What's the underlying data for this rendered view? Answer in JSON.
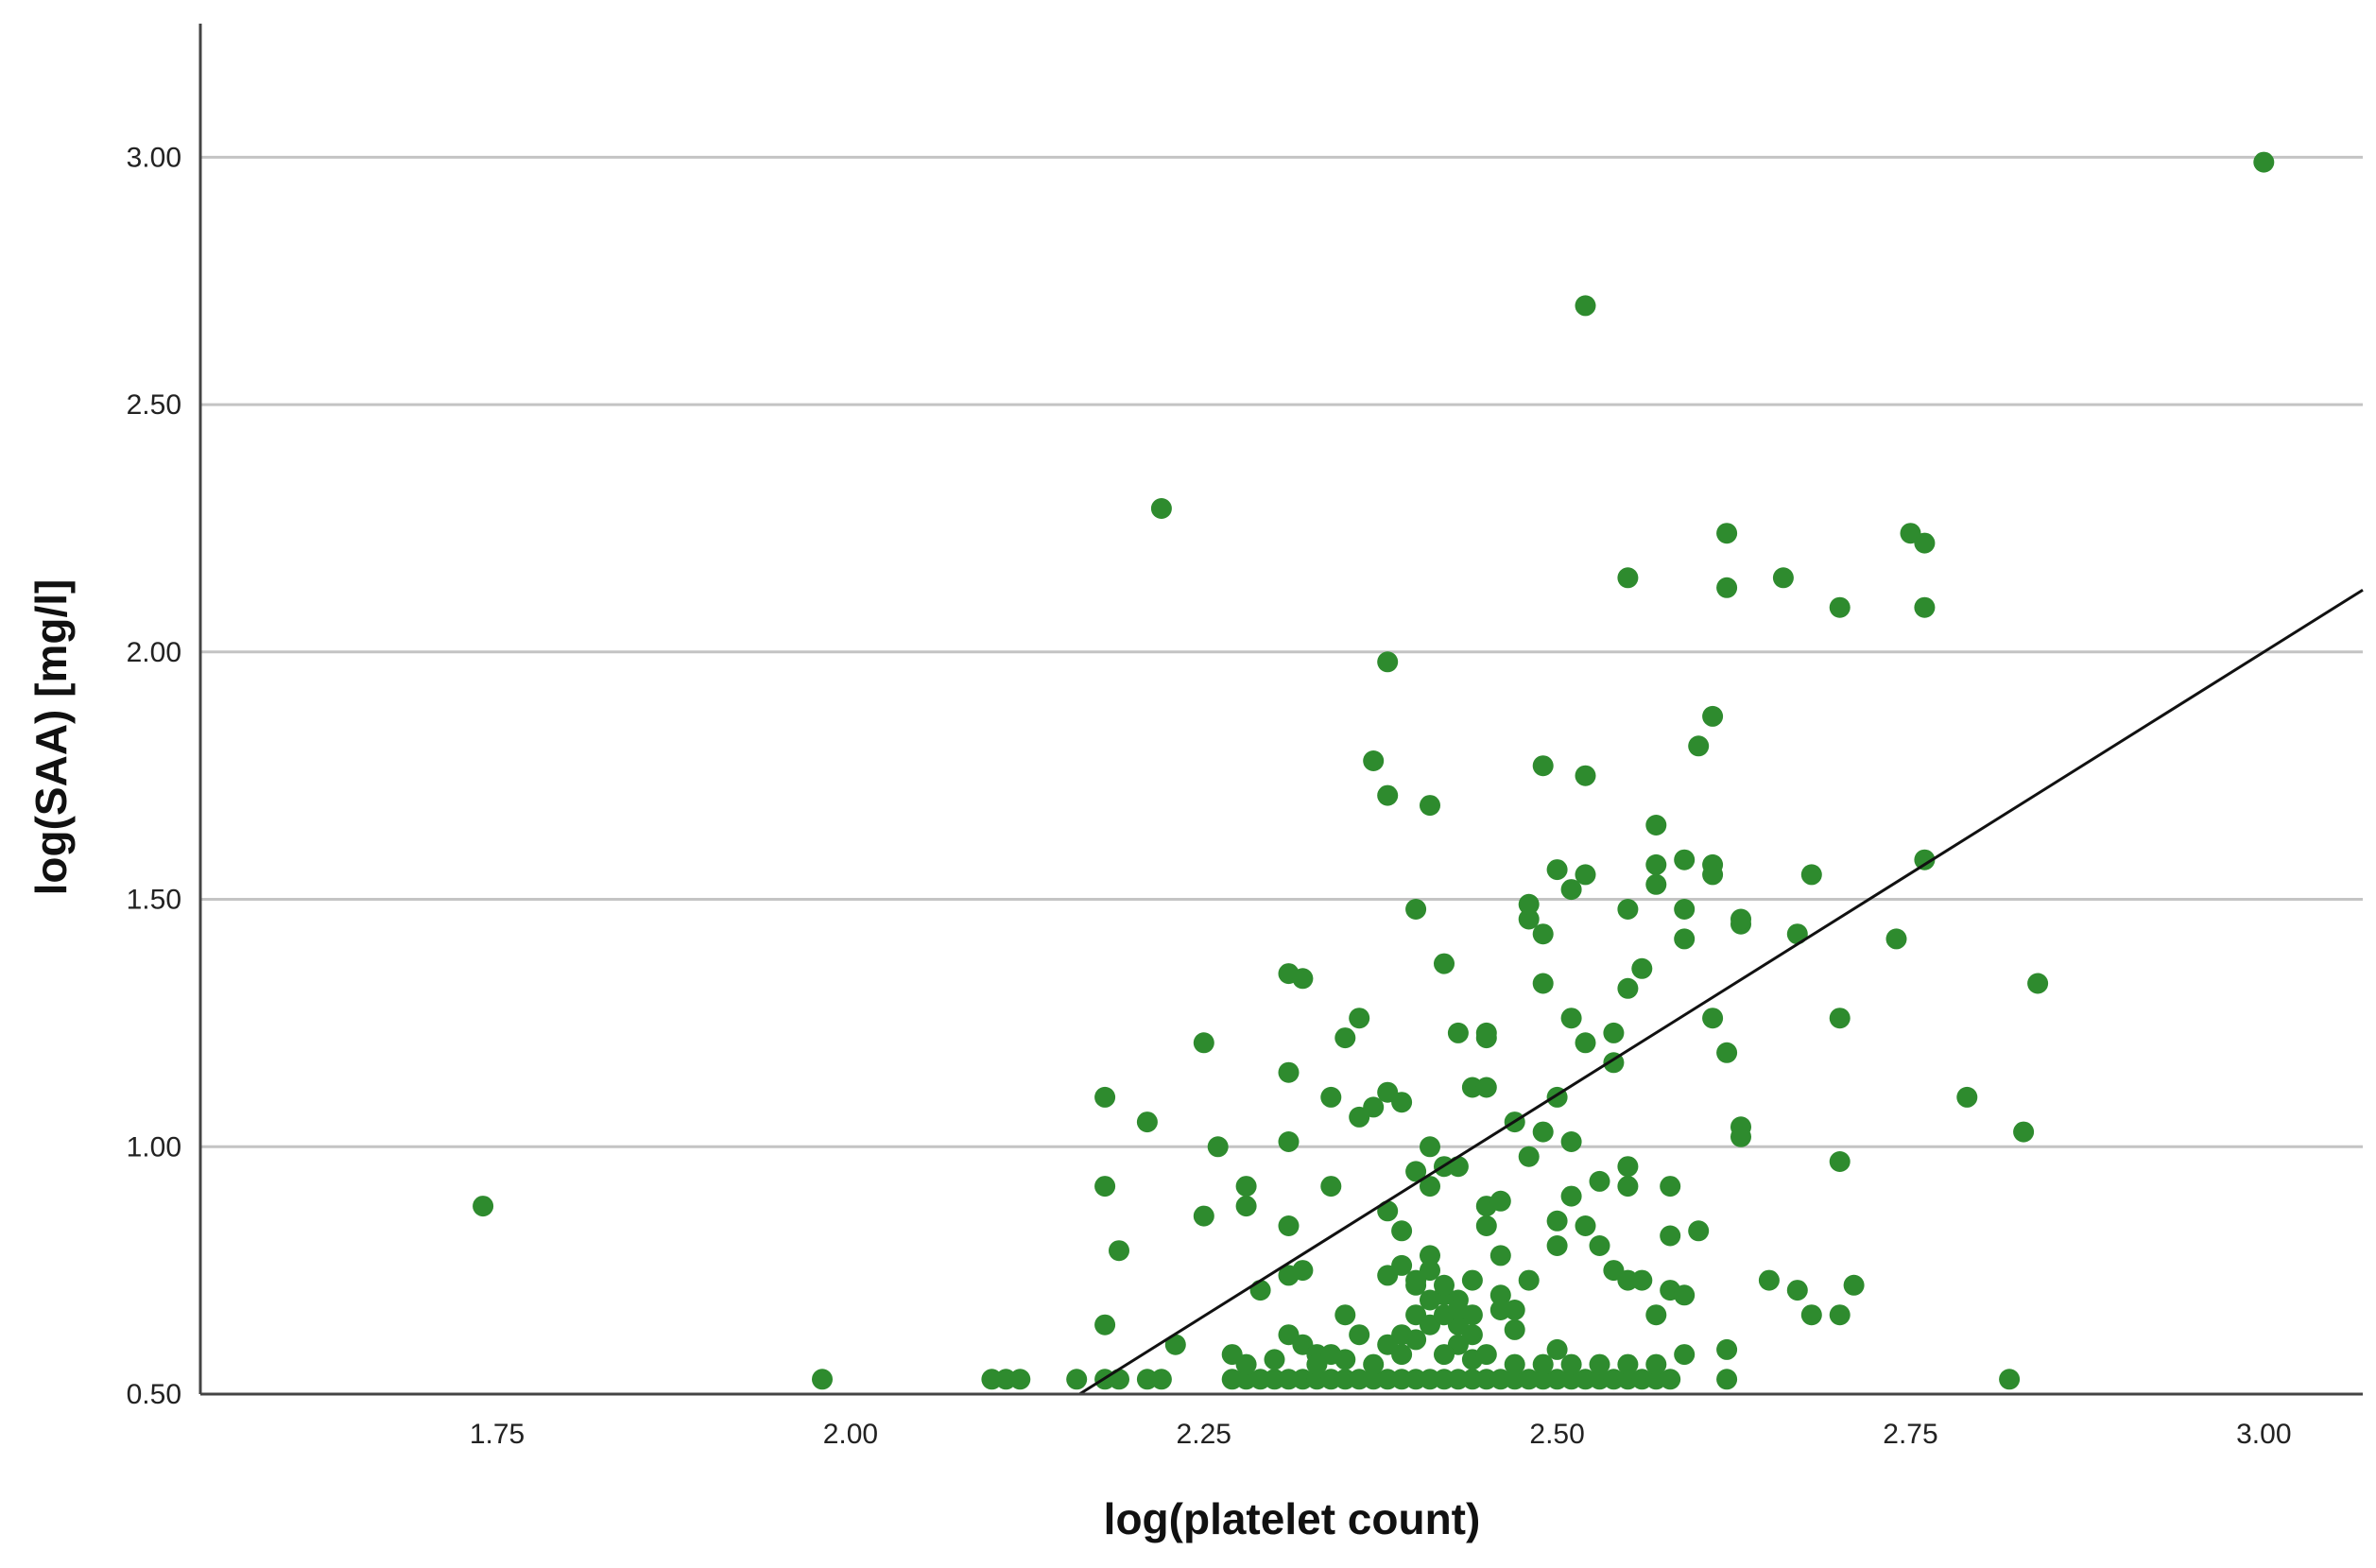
{
  "chart_data": {
    "type": "scatter",
    "title": "",
    "xlabel": "log(platelet count)",
    "ylabel": "log(SAA) [mg/l]",
    "xlim": [
      1.54,
      3.07
    ],
    "ylim": [
      0.5,
      3.27
    ],
    "xticks": [
      "1.75",
      "2.00",
      "2.25",
      "2.50",
      "2.75",
      "3.00"
    ],
    "yticks": [
      "0.50",
      "1.00",
      "1.50",
      "2.00",
      "2.50",
      "3.00"
    ],
    "xtick_values": [
      1.75,
      2.0,
      2.25,
      2.5,
      2.75,
      3.0
    ],
    "ytick_values": [
      0.5,
      1.0,
      1.5,
      2.0,
      2.5,
      3.0
    ],
    "grid": "horizontal",
    "marker_color": "#2e8b2e",
    "fit_line_color": "#111111",
    "fit_line": {
      "slope": 1.79,
      "intercept": -3.37
    },
    "series": [
      {
        "points": [
          [
            1.74,
            0.88
          ],
          [
            1.98,
            0.53
          ],
          [
            2.1,
            0.53
          ],
          [
            2.11,
            0.53
          ],
          [
            2.12,
            0.53
          ],
          [
            2.16,
            0.53
          ],
          [
            2.18,
            0.53
          ],
          [
            2.19,
            0.53
          ],
          [
            2.21,
            0.53
          ],
          [
            2.22,
            0.53
          ],
          [
            2.18,
            1.1
          ],
          [
            2.18,
            0.92
          ],
          [
            2.18,
            0.64
          ],
          [
            2.19,
            0.79
          ],
          [
            2.21,
            1.05
          ],
          [
            2.22,
            2.29
          ],
          [
            2.23,
            0.6
          ],
          [
            2.25,
            0.86
          ],
          [
            2.25,
            1.21
          ],
          [
            2.26,
            1.0
          ],
          [
            2.27,
            0.58
          ],
          [
            2.28,
            0.92
          ],
          [
            2.28,
            0.88
          ],
          [
            2.29,
            0.71
          ],
          [
            2.31,
            1.35
          ],
          [
            2.32,
            1.34
          ],
          [
            2.31,
            1.15
          ],
          [
            2.31,
            1.01
          ],
          [
            2.31,
            0.84
          ],
          [
            2.31,
            0.74
          ],
          [
            2.32,
            0.75
          ],
          [
            2.31,
            0.62
          ],
          [
            2.32,
            0.6
          ],
          [
            2.33,
            0.58
          ],
          [
            2.34,
            1.1
          ],
          [
            2.35,
            1.22
          ],
          [
            2.36,
            1.26
          ],
          [
            2.34,
            0.92
          ],
          [
            2.35,
            0.66
          ],
          [
            2.36,
            1.06
          ],
          [
            2.37,
            1.08
          ],
          [
            2.37,
            1.78
          ],
          [
            2.38,
            1.11
          ],
          [
            2.38,
            0.87
          ],
          [
            2.38,
            0.74
          ],
          [
            2.38,
            1.98
          ],
          [
            2.38,
            1.71
          ],
          [
            2.39,
            1.09
          ],
          [
            2.39,
            0.83
          ],
          [
            2.4,
            0.95
          ],
          [
            2.4,
            0.72
          ],
          [
            2.4,
            1.48
          ],
          [
            2.41,
            1.0
          ],
          [
            2.41,
            1.69
          ],
          [
            2.41,
            0.92
          ],
          [
            2.41,
            0.78
          ],
          [
            2.42,
            1.37
          ],
          [
            2.42,
            0.96
          ],
          [
            2.43,
            1.23
          ],
          [
            2.43,
            0.96
          ],
          [
            2.43,
            0.69
          ],
          [
            2.43,
            0.64
          ],
          [
            2.44,
            0.57
          ],
          [
            2.44,
            1.12
          ],
          [
            2.45,
            1.12
          ],
          [
            2.45,
            1.23
          ],
          [
            2.45,
            1.22
          ],
          [
            2.45,
            0.88
          ],
          [
            2.45,
            0.84
          ],
          [
            2.46,
            0.89
          ],
          [
            2.46,
            0.78
          ],
          [
            2.46,
            0.7
          ],
          [
            2.46,
            0.67
          ],
          [
            2.47,
            1.05
          ],
          [
            2.47,
            0.63
          ],
          [
            2.48,
            1.46
          ],
          [
            2.48,
            1.49
          ],
          [
            2.48,
            0.98
          ],
          [
            2.49,
            1.03
          ],
          [
            2.49,
            1.33
          ],
          [
            2.49,
            1.77
          ],
          [
            2.49,
            1.43
          ],
          [
            2.5,
            1.1
          ],
          [
            2.5,
            0.85
          ],
          [
            2.5,
            0.8
          ],
          [
            2.5,
            0.59
          ],
          [
            2.5,
            1.56
          ],
          [
            2.51,
            1.52
          ],
          [
            2.51,
            1.26
          ],
          [
            2.51,
            1.01
          ],
          [
            2.51,
            0.9
          ],
          [
            2.52,
            1.21
          ],
          [
            2.52,
            1.55
          ],
          [
            2.52,
            0.84
          ],
          [
            2.52,
            1.75
          ],
          [
            2.52,
            2.7
          ],
          [
            2.53,
            0.93
          ],
          [
            2.53,
            0.8
          ],
          [
            2.54,
            1.23
          ],
          [
            2.54,
            1.17
          ],
          [
            2.54,
            0.75
          ],
          [
            2.55,
            1.32
          ],
          [
            2.55,
            1.48
          ],
          [
            2.55,
            0.96
          ],
          [
            2.55,
            0.92
          ],
          [
            2.55,
            0.73
          ],
          [
            2.55,
            2.15
          ],
          [
            2.56,
            1.36
          ],
          [
            2.56,
            0.73
          ],
          [
            2.57,
            1.53
          ],
          [
            2.57,
            1.65
          ],
          [
            2.57,
            1.57
          ],
          [
            2.57,
            0.66
          ],
          [
            2.58,
            0.92
          ],
          [
            2.58,
            0.82
          ],
          [
            2.58,
            0.71
          ],
          [
            2.59,
            1.48
          ],
          [
            2.59,
            1.58
          ],
          [
            2.59,
            1.42
          ],
          [
            2.59,
            0.7
          ],
          [
            2.59,
            0.58
          ],
          [
            2.6,
            1.81
          ],
          [
            2.6,
            0.83
          ],
          [
            2.61,
            1.87
          ],
          [
            2.61,
            1.57
          ],
          [
            2.61,
            1.55
          ],
          [
            2.61,
            1.26
          ],
          [
            2.62,
            2.13
          ],
          [
            2.62,
            2.24
          ],
          [
            2.62,
            1.19
          ],
          [
            2.62,
            0.59
          ],
          [
            2.63,
            1.45
          ],
          [
            2.63,
            1.46
          ],
          [
            2.63,
            1.04
          ],
          [
            2.63,
            1.02
          ],
          [
            2.65,
            0.73
          ],
          [
            2.66,
            2.15
          ],
          [
            2.67,
            1.43
          ],
          [
            2.67,
            0.71
          ],
          [
            2.68,
            1.55
          ],
          [
            2.68,
            0.66
          ],
          [
            2.7,
            1.26
          ],
          [
            2.7,
            0.97
          ],
          [
            2.7,
            0.66
          ],
          [
            2.7,
            2.09
          ],
          [
            2.71,
            0.72
          ],
          [
            2.74,
            1.42
          ],
          [
            2.75,
            2.24
          ],
          [
            2.76,
            2.22
          ],
          [
            2.76,
            2.09
          ],
          [
            2.76,
            1.58
          ],
          [
            2.79,
            1.1
          ],
          [
            2.82,
            0.53
          ],
          [
            2.83,
            1.03
          ],
          [
            2.84,
            1.33
          ],
          [
            3.0,
            2.99
          ],
          [
            2.27,
            0.53
          ],
          [
            2.28,
            0.53
          ],
          [
            2.29,
            0.53
          ],
          [
            2.3,
            0.53
          ],
          [
            2.31,
            0.53
          ],
          [
            2.32,
            0.53
          ],
          [
            2.33,
            0.53
          ],
          [
            2.34,
            0.53
          ],
          [
            2.35,
            0.53
          ],
          [
            2.36,
            0.53
          ],
          [
            2.37,
            0.53
          ],
          [
            2.38,
            0.53
          ],
          [
            2.39,
            0.53
          ],
          [
            2.4,
            0.53
          ],
          [
            2.41,
            0.53
          ],
          [
            2.42,
            0.53
          ],
          [
            2.43,
            0.53
          ],
          [
            2.44,
            0.53
          ],
          [
            2.45,
            0.53
          ],
          [
            2.46,
            0.53
          ],
          [
            2.47,
            0.53
          ],
          [
            2.48,
            0.53
          ],
          [
            2.49,
            0.53
          ],
          [
            2.5,
            0.53
          ],
          [
            2.51,
            0.53
          ],
          [
            2.52,
            0.53
          ],
          [
            2.53,
            0.53
          ],
          [
            2.54,
            0.53
          ],
          [
            2.55,
            0.53
          ],
          [
            2.56,
            0.53
          ],
          [
            2.57,
            0.53
          ],
          [
            2.58,
            0.53
          ],
          [
            2.62,
            0.53
          ],
          [
            2.28,
            0.56
          ],
          [
            2.3,
            0.57
          ],
          [
            2.33,
            0.56
          ],
          [
            2.35,
            0.57
          ],
          [
            2.37,
            0.56
          ],
          [
            2.39,
            0.58
          ],
          [
            2.4,
            0.61
          ],
          [
            2.41,
            0.64
          ],
          [
            2.42,
            0.66
          ],
          [
            2.42,
            0.7
          ],
          [
            2.43,
            0.6
          ],
          [
            2.44,
            0.66
          ],
          [
            2.41,
            0.69
          ],
          [
            2.4,
            0.66
          ],
          [
            2.39,
            0.62
          ],
          [
            2.42,
            0.58
          ],
          [
            2.43,
            0.67
          ],
          [
            2.44,
            0.62
          ],
          [
            2.36,
            0.62
          ],
          [
            2.38,
            0.6
          ],
          [
            2.34,
            0.58
          ],
          [
            2.45,
            0.58
          ],
          [
            2.47,
            0.56
          ],
          [
            2.49,
            0.56
          ],
          [
            2.51,
            0.56
          ],
          [
            2.53,
            0.56
          ],
          [
            2.55,
            0.56
          ],
          [
            2.57,
            0.56
          ],
          [
            2.47,
            0.67
          ],
          [
            2.48,
            0.73
          ],
          [
            2.44,
            0.73
          ],
          [
            2.41,
            0.75
          ],
          [
            2.4,
            0.73
          ],
          [
            2.39,
            0.76
          ],
          [
            2.42,
            0.72
          ]
        ]
      }
    ]
  }
}
